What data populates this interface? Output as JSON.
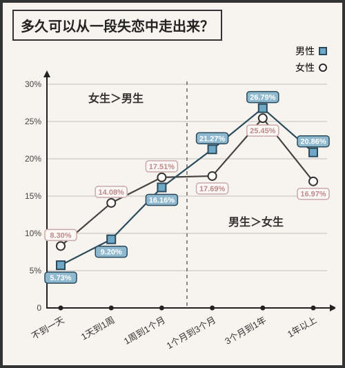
{
  "title": "多久可以从一段失恋中走出来？",
  "legend": {
    "male": "男性",
    "female": "女性"
  },
  "chart": {
    "type": "line",
    "background_color": "#f7f3ee",
    "frame_border_color": "#333333",
    "grid_color": "#bfbfbf",
    "axis_color": "#222222",
    "palette": {
      "male_fill": "#8fb9cf",
      "male_stroke": "#2a4a5c",
      "female_fill": "#fbf8f6",
      "female_stroke": "#caa9a9",
      "female_line": "#444444"
    },
    "categories": [
      "不到一天",
      "1天到1周",
      "1周到1个月",
      "1个月到3个月",
      "3个月到1年",
      "1年以上"
    ],
    "ylim": [
      0,
      30
    ],
    "ytick_step": 5,
    "yticks": [
      "0",
      "5%",
      "10%",
      "15%",
      "20%",
      "25%",
      "30%"
    ],
    "xtick_rotation_deg": 30,
    "divider_after_index": 2,
    "series": {
      "male": {
        "values": [
          5.73,
          9.2,
          16.16,
          21.27,
          26.79,
          20.86
        ],
        "labels": [
          "5.73%",
          "9.20%",
          "16.16%",
          "21.27%",
          "26.79%",
          "20.86%"
        ],
        "marker": "square",
        "label_side": [
          "below",
          "below",
          "below",
          "above",
          "above",
          "above"
        ]
      },
      "female": {
        "values": [
          8.3,
          14.08,
          17.51,
          17.69,
          25.45,
          16.97
        ],
        "labels": [
          "8.30%",
          "14.08%",
          "17.51%",
          "17.69%",
          "25.45%",
          "16.97%"
        ],
        "marker": "circle",
        "label_side": [
          "above",
          "above",
          "above",
          "below",
          "below",
          "below"
        ]
      }
    },
    "annotations": {
      "left": "女生＞男生",
      "right": "男生＞女生"
    },
    "fontsize": {
      "title": 20,
      "axis_label": 12,
      "category_label": 13,
      "badge": 11,
      "annotation": 16
    }
  }
}
